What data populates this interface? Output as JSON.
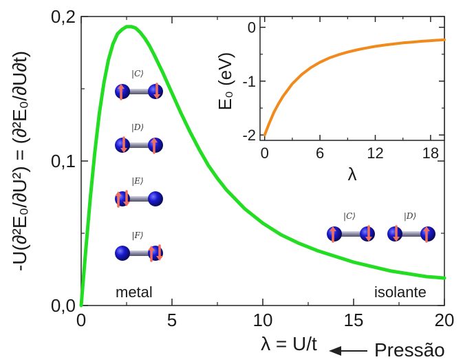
{
  "chart_data": [
    {
      "type": "line",
      "x_tick_labels": [
        "0",
        "5",
        "10",
        "15",
        "20"
      ],
      "x_ticks": [
        0,
        5,
        10,
        15,
        20
      ],
      "y_tick_labels": [
        "0,0",
        "0,1",
        "0,2"
      ],
      "y_ticks": [
        0,
        0.1,
        0.2
      ],
      "xlim": [
        0,
        20
      ],
      "ylim": [
        0,
        0.2
      ],
      "xlabel": "λ = U/t",
      "ylabel": "-U(∂²E₀/∂U²) = (∂²E₀/∂U∂t)",
      "series": [
        {
          "color": "#22dd22",
          "x": [
            0,
            0.25,
            0.5,
            0.75,
            1.0,
            1.25,
            1.5,
            1.75,
            2.0,
            2.25,
            2.5,
            2.75,
            2.9,
            3.0,
            3.25,
            3.5,
            3.75,
            4.0,
            4.5,
            5.0,
            5.5,
            6.0,
            6.5,
            7.0,
            7.5,
            8.0,
            9.0,
            10.0,
            11.0,
            12.0,
            13.0,
            14.0,
            15.0,
            16.0,
            17.0,
            18.0,
            19.0,
            20.0
          ],
          "y": [
            0.0,
            0.038,
            0.074,
            0.106,
            0.133,
            0.154,
            0.17,
            0.181,
            0.188,
            0.191,
            0.193,
            0.193,
            0.1925,
            0.192,
            0.189,
            0.185,
            0.18,
            0.174,
            0.161,
            0.147,
            0.133,
            0.12,
            0.108,
            0.097,
            0.088,
            0.08,
            0.067,
            0.057,
            0.049,
            0.043,
            0.038,
            0.034,
            0.03,
            0.027,
            0.024,
            0.022,
            0.02,
            0.019
          ]
        }
      ],
      "annotations": [
        "metal",
        "isolante",
        "Pressão"
      ]
    },
    {
      "type": "line",
      "inset": true,
      "x_tick_labels": [
        "0",
        "6",
        "12",
        "18"
      ],
      "x_ticks": [
        0,
        6,
        12,
        18
      ],
      "y_tick_labels": [
        "0",
        "-1",
        "-2"
      ],
      "y_ticks": [
        0,
        -1,
        -2
      ],
      "xlim": [
        -0.5,
        19.5
      ],
      "ylim": [
        -2.1,
        0.2
      ],
      "xlabel": "λ",
      "ylabel": "E₀ (eV)",
      "series": [
        {
          "color": "#f08a1c",
          "x": [
            0,
            0.5,
            1,
            1.5,
            2,
            3,
            4,
            5,
            6,
            7,
            8,
            9,
            10,
            11,
            12,
            13,
            14,
            15,
            16,
            17,
            18,
            19,
            19.5
          ],
          "y": [
            -2.0,
            -1.78,
            -1.58,
            -1.42,
            -1.28,
            -1.05,
            -0.88,
            -0.75,
            -0.65,
            -0.57,
            -0.51,
            -0.46,
            -0.42,
            -0.385,
            -0.355,
            -0.33,
            -0.31,
            -0.29,
            -0.275,
            -0.26,
            -0.248,
            -0.237,
            -0.232
          ]
        }
      ]
    }
  ],
  "states": [
    "|C⟩",
    "|D⟩",
    "|E⟩",
    "|F⟩"
  ],
  "insulator_states": [
    "|C⟩",
    "|D⟩"
  ],
  "colors": {
    "main_curve": "#22dd22",
    "inset_curve": "#f08a1c",
    "atom": "#1a1aa8",
    "spin_arrow": "#f07060",
    "bond": "#8a8aa0"
  }
}
